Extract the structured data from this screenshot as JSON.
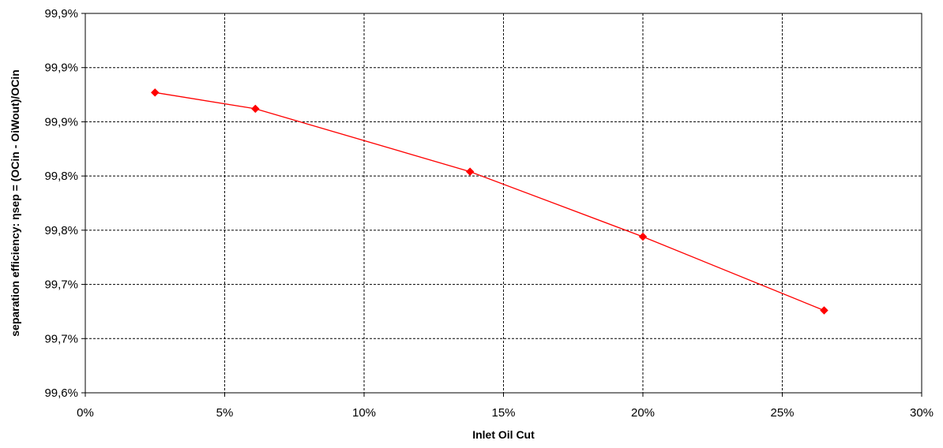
{
  "chart_data": {
    "type": "line",
    "title": "",
    "xlabel": "Inlet Oil Cut",
    "ylabel": "separation efficiency: ηsep = (OCin - OiWout)/OCin",
    "xlim": [
      0,
      0.3
    ],
    "ylim": [
      99.6,
      99.95
    ],
    "x_ticks": [
      {
        "value": 0.0,
        "label": "0%"
      },
      {
        "value": 0.05,
        "label": "5%"
      },
      {
        "value": 0.1,
        "label": "10%"
      },
      {
        "value": 0.15,
        "label": "15%"
      },
      {
        "value": 0.2,
        "label": "20%"
      },
      {
        "value": 0.25,
        "label": "25%"
      },
      {
        "value": 0.3,
        "label": "30%"
      }
    ],
    "y_ticks": [
      {
        "value": 99.6,
        "label": "99,6%"
      },
      {
        "value": 99.65,
        "label": "99,7%"
      },
      {
        "value": 99.7,
        "label": "99,7%"
      },
      {
        "value": 99.75,
        "label": "99,8%"
      },
      {
        "value": 99.8,
        "label": "99,8%"
      },
      {
        "value": 99.85,
        "label": "99,9%"
      },
      {
        "value": 99.9,
        "label": "99,9%"
      }
    ],
    "grid": true,
    "legend": "none",
    "color": "#ff0000",
    "series": [
      {
        "x": [
          0.025,
          0.061,
          0.138,
          0.2,
          0.265
        ],
        "y": [
          99.877,
          99.862,
          99.804,
          99.744,
          99.676
        ]
      }
    ]
  }
}
